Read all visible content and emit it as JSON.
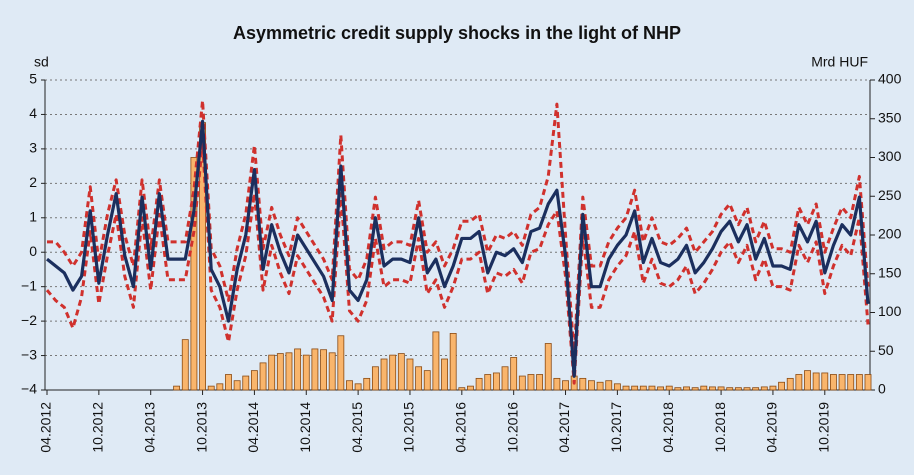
{
  "chart_data": {
    "type": "line",
    "title": "Asymmetric credit supply shocks in the light of NHP",
    "ylabel": "sd",
    "y2label": "Mrd HUF",
    "categories": [
      "04.2012",
      null,
      null,
      null,
      null,
      null,
      "10.2012",
      null,
      null,
      null,
      null,
      null,
      "04.2013",
      null,
      null,
      null,
      null,
      null,
      "10.2013",
      null,
      null,
      null,
      null,
      null,
      "04.2014",
      null,
      null,
      null,
      null,
      null,
      "10.2014",
      null,
      null,
      null,
      null,
      null,
      "04.2015",
      null,
      null,
      null,
      null,
      null,
      "10.2015",
      null,
      null,
      null,
      null,
      null,
      "04.2016",
      null,
      null,
      null,
      null,
      null,
      "10.2016",
      null,
      null,
      null,
      null,
      null,
      "04.2017",
      null,
      null,
      null,
      null,
      null,
      "10.2017",
      null,
      null,
      null,
      null,
      null,
      "04.2018",
      null,
      null,
      null,
      null,
      null,
      "10.2018",
      null,
      null,
      null,
      null,
      null,
      "04.2019",
      null,
      null,
      null,
      null,
      null,
      "10.2019",
      null,
      null,
      null,
      null,
      null
    ],
    "series": [
      {
        "type": "bar",
        "axis": "y2",
        "color": "#f9b56c",
        "values": [
          0,
          0,
          0,
          0,
          0,
          0,
          0,
          0,
          0,
          0,
          0,
          0,
          0,
          0,
          0,
          5,
          65,
          300,
          345,
          5,
          8,
          20,
          12,
          18,
          25,
          35,
          45,
          47,
          48,
          53,
          45,
          53,
          52,
          48,
          70,
          12,
          8,
          15,
          30,
          40,
          45,
          47,
          40,
          30,
          25,
          75,
          40,
          73,
          3,
          5,
          15,
          20,
          22,
          30,
          42,
          18,
          20,
          20,
          60,
          15,
          12,
          18,
          15,
          12,
          10,
          12,
          8,
          5,
          5,
          5,
          5,
          4,
          5,
          3,
          4,
          3,
          5,
          4,
          4,
          3,
          3,
          3,
          3,
          4,
          5,
          10,
          15,
          20,
          25,
          22,
          22,
          20,
          20,
          20,
          20,
          20
        ]
      },
      {
        "type": "line",
        "line_style": "dashed",
        "color": "#d0312d",
        "values": [
          0.3,
          0.3,
          0.0,
          -0.4,
          0.0,
          1.9,
          -0.3,
          1.1,
          2.1,
          0.5,
          -0.4,
          2.1,
          0.1,
          2.1,
          0.3,
          0.3,
          0.3,
          1.8,
          4.4,
          0.1,
          -0.4,
          -1.4,
          0.1,
          1.1,
          3.1,
          0.1,
          1.3,
          0.5,
          -0.1,
          1.0,
          0.6,
          0.2,
          -0.2,
          -0.8,
          3.4,
          -0.5,
          -0.8,
          -0.2,
          1.6,
          0.1,
          0.3,
          0.3,
          0.2,
          1.5,
          0.0,
          0.3,
          -0.4,
          0.1,
          0.9,
          0.9,
          1.1,
          0.0,
          0.5,
          0.4,
          0.6,
          0.2,
          1.1,
          1.3,
          2.2,
          4.3,
          0.5,
          -3.0,
          1.6,
          -0.4,
          -0.4,
          0.3,
          0.7,
          1.0,
          1.8,
          0.3,
          1.0,
          0.3,
          0.2,
          0.4,
          0.7,
          0.0,
          0.3,
          0.6,
          1.1,
          1.4,
          0.8,
          1.3,
          0.3,
          0.9,
          0.1,
          0.1,
          0.0,
          1.3,
          0.8,
          1.4,
          0.0,
          0.7,
          1.3,
          1.0,
          2.2,
          -1.0
        ]
      },
      {
        "type": "line",
        "line_style": "dashed",
        "color": "#d0312d",
        "values": [
          -1.1,
          -1.4,
          -1.6,
          -2.2,
          -1.3,
          0.6,
          -1.5,
          -0.1,
          1.1,
          -0.7,
          -1.6,
          1.0,
          -1.1,
          1.1,
          -0.8,
          -0.8,
          -0.8,
          0.6,
          3.2,
          -1.1,
          -1.6,
          -2.6,
          -1.1,
          -0.1,
          1.7,
          -1.1,
          0.2,
          -0.6,
          -1.2,
          -0.1,
          -0.5,
          -0.9,
          -1.3,
          -2.0,
          1.7,
          -1.7,
          -2.0,
          -1.4,
          0.4,
          -1.0,
          -0.8,
          -0.8,
          -0.9,
          0.4,
          -1.2,
          -0.8,
          -1.6,
          -1.0,
          -0.2,
          -0.2,
          0.0,
          -1.2,
          -0.6,
          -0.7,
          -0.5,
          -0.9,
          0.0,
          0.1,
          0.8,
          1.2,
          -0.7,
          -3.8,
          0.5,
          -1.6,
          -1.6,
          -0.8,
          -0.4,
          -0.1,
          0.6,
          -0.9,
          -0.2,
          -0.9,
          -1.0,
          -0.8,
          -0.4,
          -1.2,
          -0.9,
          -0.5,
          0.0,
          0.3,
          -0.3,
          0.2,
          -0.8,
          -0.2,
          -1.0,
          -1.0,
          -1.1,
          0.2,
          -0.3,
          0.3,
          -1.2,
          -0.4,
          0.2,
          -0.1,
          1.0,
          -2.1
        ]
      },
      {
        "type": "line",
        "line_style": "solid",
        "color": "#1b2f5e",
        "values": [
          -0.2,
          -0.4,
          -0.6,
          -1.1,
          -0.7,
          1.2,
          -0.9,
          0.5,
          1.7,
          -0.1,
          -1.0,
          1.6,
          -0.5,
          1.7,
          -0.2,
          -0.2,
          -0.2,
          1.2,
          3.8,
          -0.5,
          -1.0,
          -2.0,
          -0.5,
          0.5,
          2.4,
          -0.5,
          0.8,
          0.0,
          -0.6,
          0.5,
          0.1,
          -0.3,
          -0.7,
          -1.4,
          2.5,
          -1.1,
          -1.4,
          -0.8,
          1.0,
          -0.4,
          -0.2,
          -0.2,
          -0.3,
          1.0,
          -0.6,
          -0.2,
          -1.0,
          -0.4,
          0.4,
          0.4,
          0.6,
          -0.6,
          0.0,
          -0.1,
          0.1,
          -0.3,
          0.6,
          0.7,
          1.4,
          1.8,
          -0.1,
          -3.6,
          1.1,
          -1.0,
          -1.0,
          -0.2,
          0.2,
          0.5,
          1.2,
          -0.3,
          0.4,
          -0.3,
          -0.4,
          -0.2,
          0.2,
          -0.6,
          -0.3,
          0.1,
          0.6,
          0.9,
          0.3,
          0.8,
          -0.2,
          0.4,
          -0.4,
          -0.4,
          -0.5,
          0.8,
          0.3,
          0.9,
          -0.6,
          0.2,
          0.8,
          0.5,
          1.6,
          -1.5
        ]
      }
    ],
    "ylim": [
      -4,
      5
    ],
    "yticks": [
      {
        "value": -4,
        "label": "−4"
      },
      {
        "value": -3,
        "label": "−3"
      },
      {
        "value": -2,
        "label": "−2"
      },
      {
        "value": -1,
        "label": "−1"
      },
      0,
      1,
      2,
      3,
      4,
      5
    ],
    "y2lim": [
      0,
      400
    ],
    "y2ticks": [
      0,
      50,
      100,
      150,
      200,
      250,
      300,
      350,
      400
    ],
    "grid": true
  }
}
